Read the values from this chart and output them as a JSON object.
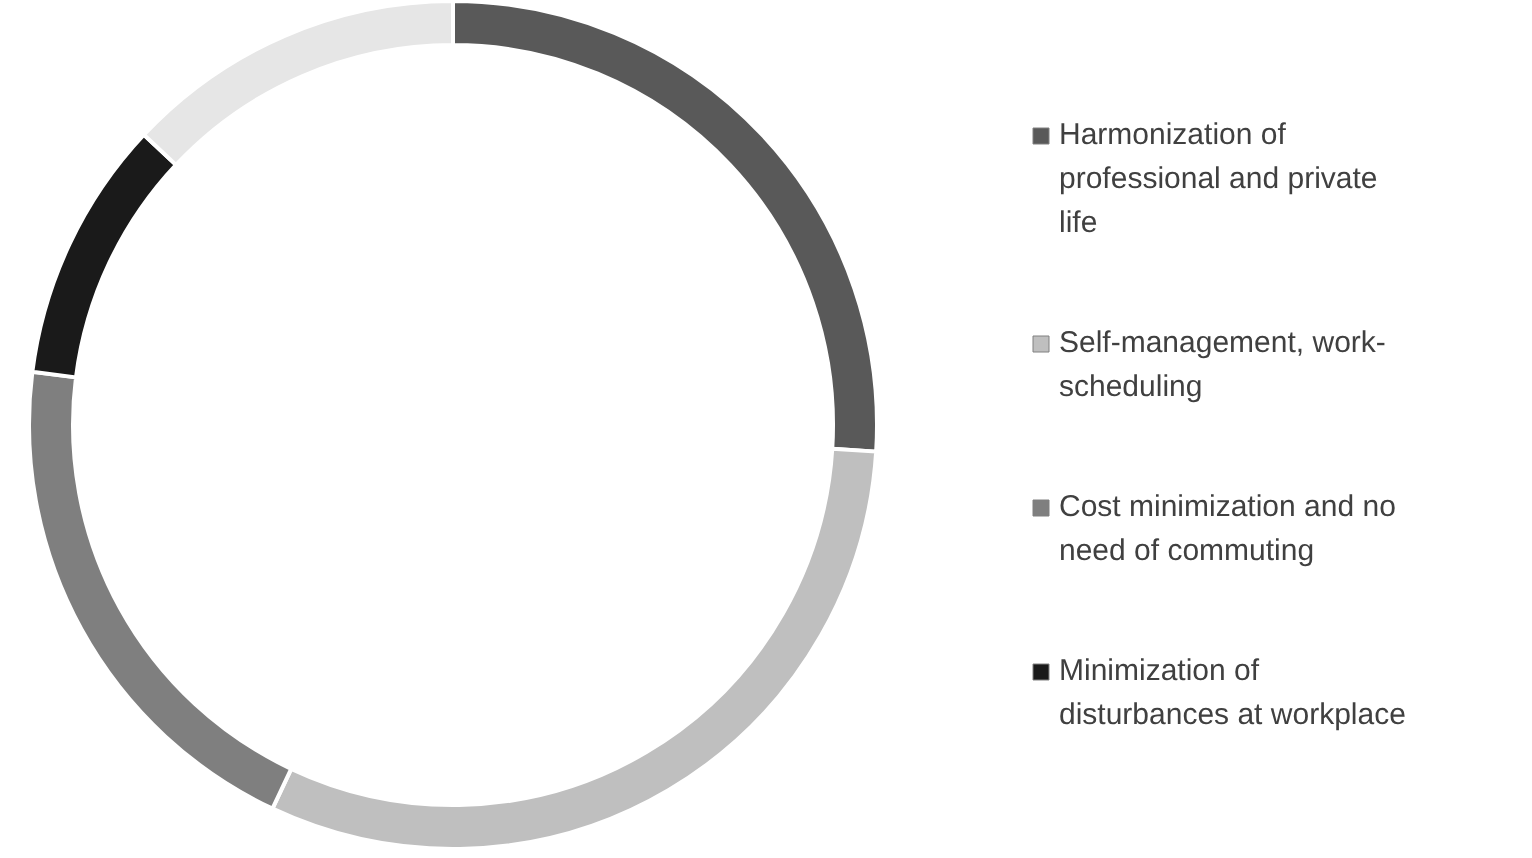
{
  "chart_data": {
    "type": "donut",
    "categories": [
      "Harmonization of professional and private life",
      "Self-management, work-scheduling",
      "Cost minimization and no need of commuting",
      "Minimization of disturbances at workplace",
      null
    ],
    "values": [
      26,
      31,
      20,
      10,
      13
    ],
    "colors": [
      "#595959",
      "#bfbfbf",
      "#7f7f7f",
      "#1a1a1a",
      "#e6e6e6"
    ],
    "legend": "right"
  }
}
